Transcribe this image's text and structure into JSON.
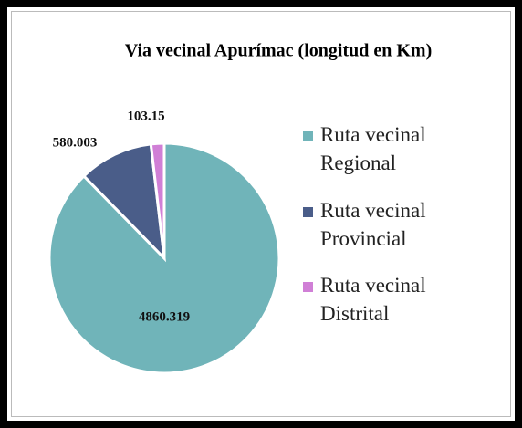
{
  "chart_data": {
    "type": "pie",
    "title": "Via vecinal Apurímac (longitud en Km)",
    "categories": [
      "Ruta vecinal Regional",
      "Ruta vecinal Provincial",
      "Ruta vecinal Distrital"
    ],
    "values": [
      4860.319,
      580.003,
      103.15
    ],
    "colors": [
      "#70b4b9",
      "#4a5d89",
      "#d07fd6"
    ],
    "legend": "right"
  }
}
